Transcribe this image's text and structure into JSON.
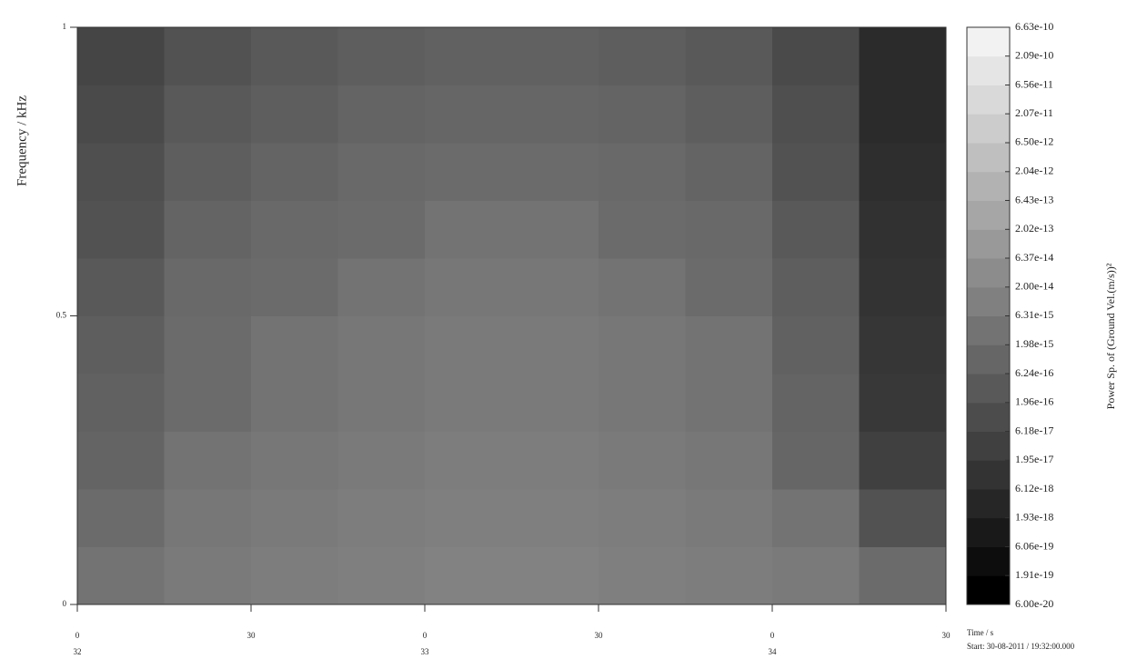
{
  "chart_data": {
    "type": "heatmap",
    "ylabel": "Frequency / kHz",
    "xlabel": "Time / s",
    "start_label": "Start: 30-08-2011 / 19:32:00.000",
    "colorbar_label": "Power Sp. of (Ground Vel.(m/s))²",
    "colormap": "gray",
    "log_color": true,
    "xlim": [
      0,
      150
    ],
    "xticks": [
      {
        "value": 0,
        "label": "0"
      },
      {
        "value": 30,
        "label": "30"
      },
      {
        "value": 60,
        "label": "0"
      },
      {
        "value": 90,
        "label": "30"
      },
      {
        "value": 120,
        "label": "0"
      },
      {
        "value": 150,
        "label": "30"
      }
    ],
    "minute_ticks": [
      {
        "value": 0,
        "label": "32"
      },
      {
        "value": 60,
        "label": "33"
      },
      {
        "value": 120,
        "label": "34"
      }
    ],
    "ylim": [
      0,
      1
    ],
    "yticks": [
      0,
      0.5,
      1
    ],
    "xbins": [
      0,
      15,
      30,
      45,
      60,
      75,
      90,
      105,
      120,
      135,
      150
    ],
    "ybins": [
      0,
      0.1,
      0.2,
      0.3,
      0.4,
      0.5,
      0.6,
      0.7,
      0.8,
      0.9,
      1
    ],
    "z": [
      [
        2e-15,
        4e-15,
        5e-15,
        6e-15,
        8e-15,
        8e-15,
        6e-15,
        5e-15,
        4e-15,
        1e-15
      ],
      [
        1e-15,
        3e-15,
        4e-15,
        5e-15,
        6e-15,
        6e-15,
        5e-15,
        4e-15,
        2e-15,
        1e-16
      ],
      [
        5e-16,
        2e-15,
        3e-15,
        4e-15,
        5e-15,
        5e-15,
        4e-15,
        3e-15,
        6e-16,
        2e-17
      ],
      [
        4e-16,
        1e-15,
        2e-15,
        3e-15,
        4e-15,
        4e-15,
        3e-15,
        2e-15,
        5e-16,
        1e-17
      ],
      [
        3e-16,
        1e-15,
        2e-15,
        3e-15,
        4e-15,
        4e-15,
        3e-15,
        2e-15,
        4e-16,
        8e-18
      ],
      [
        2e-16,
        8e-16,
        1e-15,
        2e-15,
        3e-15,
        3e-15,
        2e-15,
        1e-15,
        3e-16,
        6e-18
      ],
      [
        1e-16,
        5e-16,
        8e-16,
        1e-15,
        2e-15,
        2e-15,
        1e-15,
        8e-16,
        2e-16,
        5e-18
      ],
      [
        8e-17,
        3e-16,
        5e-16,
        8e-16,
        1e-15,
        1e-15,
        8e-16,
        5e-16,
        1e-16,
        4e-18
      ],
      [
        5e-17,
        2e-16,
        3e-16,
        5e-16,
        6e-16,
        6e-16,
        5e-16,
        3e-16,
        8e-17,
        3e-18
      ],
      [
        3e-17,
        1e-16,
        2e-16,
        3e-16,
        4e-16,
        4e-16,
        3e-16,
        2e-16,
        5e-17,
        3e-18
      ]
    ],
    "clim": [
      6e-20,
      6.63e-10
    ],
    "cticks": [
      {
        "value": 6e-20,
        "label": "6.00e-20"
      },
      {
        "value": 1.91e-19,
        "label": "1.91e-19"
      },
      {
        "value": 6.06e-19,
        "label": "6.06e-19"
      },
      {
        "value": 1.93e-18,
        "label": "1.93e-18"
      },
      {
        "value": 6.12e-18,
        "label": "6.12e-18"
      },
      {
        "value": 1.95e-17,
        "label": "1.95e-17"
      },
      {
        "value": 6.18e-17,
        "label": "6.18e-17"
      },
      {
        "value": 1.96e-16,
        "label": "1.96e-16"
      },
      {
        "value": 6.24e-16,
        "label": "6.24e-16"
      },
      {
        "value": 1.98e-15,
        "label": "1.98e-15"
      },
      {
        "value": 6.31e-15,
        "label": "6.31e-15"
      },
      {
        "value": 2e-14,
        "label": "2.00e-14"
      },
      {
        "value": 6.37e-14,
        "label": "6.37e-14"
      },
      {
        "value": 2.02e-13,
        "label": "2.02e-13"
      },
      {
        "value": 6.43e-13,
        "label": "6.43e-13"
      },
      {
        "value": 2.04e-12,
        "label": "2.04e-12"
      },
      {
        "value": 6.5e-12,
        "label": "6.50e-12"
      },
      {
        "value": 2.07e-11,
        "label": "2.07e-11"
      },
      {
        "value": 6.56e-11,
        "label": "6.56e-11"
      },
      {
        "value": 2.09e-10,
        "label": "2.09e-10"
      },
      {
        "value": 6.63e-10,
        "label": "6.63e-10"
      }
    ]
  }
}
